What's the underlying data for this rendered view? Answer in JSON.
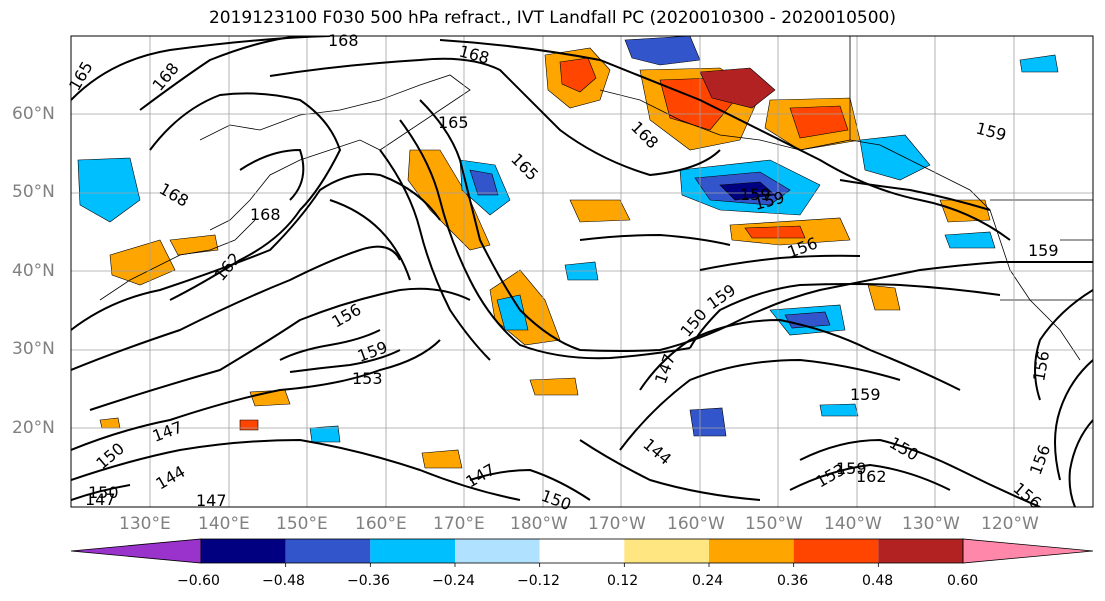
{
  "title": "2019123100 F030 500 hPa refract., IVT Landfall PC (2020010300 - 2020010500)",
  "lat_labels": [
    "60°N",
    "50°N",
    "40°N",
    "30°N",
    "20°N"
  ],
  "lon_labels": [
    "130°E",
    "140°E",
    "150°E",
    "160°E",
    "170°E",
    "180°W",
    "170°W",
    "160°W",
    "150°W",
    "140°W",
    "130°W",
    "120°W"
  ],
  "colorbar": {
    "ticks": [
      "−0.60",
      "−0.48",
      "−0.36",
      "−0.24",
      "−0.12",
      "0.12",
      "0.24",
      "0.36",
      "0.48",
      "0.60"
    ],
    "colors": [
      "#9933cc",
      "#000080",
      "#3355cc",
      "#00bfff",
      "#b0e2ff",
      "#ffffff",
      "#ffe680",
      "#ffa500",
      "#ff4500",
      "#b22222",
      "#ff88aa"
    ]
  },
  "contour_labels": [
    "168",
    "168",
    "168",
    "165",
    "168",
    "168",
    "165",
    "162",
    "156",
    "159",
    "153",
    "147",
    "150",
    "144",
    "147",
    "147",
    "150",
    "159",
    "156",
    "150",
    "147",
    "144",
    "159",
    "153",
    "159",
    "162",
    "150",
    "159",
    "156",
    "159",
    "156",
    "156",
    "150",
    "147",
    "168",
    "165",
    "159",
    "159"
  ]
}
